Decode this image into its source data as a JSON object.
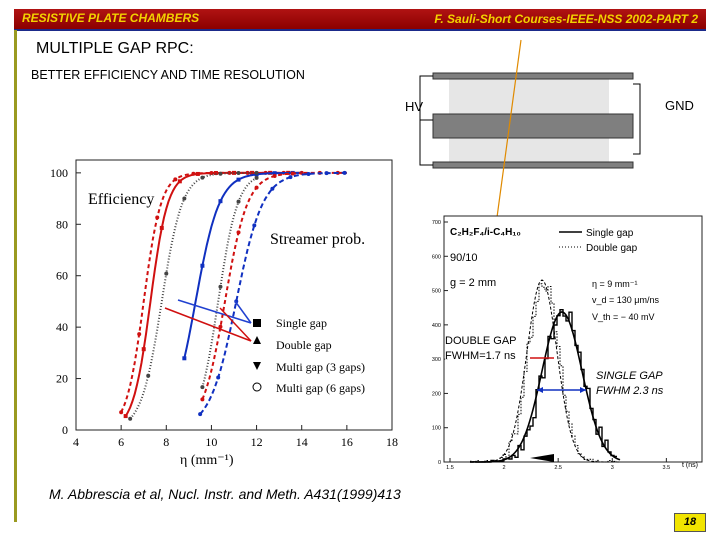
{
  "header": {
    "left": "RESISTIVE PLATE CHAMBERS",
    "right": "F. Sauli-Short Courses-IEEE-NSS 2002-PART 2"
  },
  "title": "MULTIPLE GAP RPC:",
  "subtitle": "BETTER EFFICIENCY AND TIME RESOLUTION",
  "diagram": {
    "hv_label": "HV",
    "gnd_label": "GND"
  },
  "efficiency_plot": {
    "efficiency_label": "Efficiency",
    "streamer_label": "Streamer prob.",
    "x_label": "η (mm⁻¹)",
    "x_ticks": [
      "4",
      "6",
      "8",
      "10",
      "12",
      "14",
      "16",
      "18"
    ],
    "y_ticks": [
      "0",
      "20",
      "40",
      "60",
      "80",
      "100"
    ],
    "legend": [
      "Single gap",
      "Double gap",
      "Multi gap (3 gaps)",
      "Multi gap (6 gaps)"
    ]
  },
  "timing_plot": {
    "gas_line": "C₂H₂F₄/i-C₄H₁₀",
    "ratio": "90/10",
    "gap": "g = 2 mm",
    "eta": "η = 9 mm⁻¹",
    "vd": "v_d = 130 μm/ns",
    "vth": "V_th = − 40 mV",
    "legend": [
      "Single gap",
      "Double gap"
    ],
    "y_ticks": [
      "700",
      "600",
      "500",
      "400",
      "300",
      "200",
      "100",
      "0"
    ],
    "x_ticks": [
      "1.5",
      "2",
      "2.5",
      "3",
      "3.5"
    ],
    "x_unit": "t (ns)"
  },
  "annotations": {
    "double_gap": "DOUBLE GAP",
    "double_fwhm": "FWHM=1.7 ns",
    "single_gap": "SINGLE GAP",
    "single_fwhm": "FWHM 2.3 ns"
  },
  "caption": "M. Abbrescia et al, Nucl. Instr. and Meth. A431(1999)413",
  "page_number": "18",
  "colors": {
    "header_bg": "#a00e0e",
    "header_text": "#f2d200",
    "page_badge": "#f1e400",
    "red_curve": "#d01010",
    "blue_curve": "#1030c0"
  }
}
